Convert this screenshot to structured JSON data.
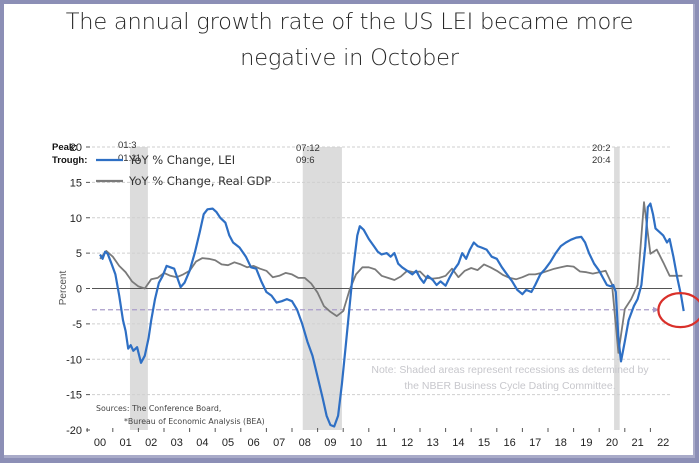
{
  "chart_data": {
    "type": "line",
    "title": "The annual growth rate of the US LEI became more negative in October",
    "title_lines": [
      "The annual growth rate of the US LEI became more",
      "negative in October"
    ],
    "xlabel": "",
    "ylabel": "Percent",
    "ylim": [
      -20,
      20
    ],
    "yticks": [
      -20,
      -15,
      -10,
      -5,
      0,
      5,
      10,
      15,
      20
    ],
    "xlim": [
      2000,
      2022.9
    ],
    "xtick_labels": [
      "00",
      "01",
      "02",
      "03",
      "04",
      "05",
      "06",
      "07",
      "08",
      "09",
      "10",
      "11",
      "12",
      "13",
      "14",
      "15",
      "16",
      "17",
      "18",
      "19",
      "20",
      "21",
      "22"
    ],
    "grid": "horizontal dashed",
    "legend_position": "top-left",
    "colors": {
      "lei": "#2e6fc4",
      "gdp": "#7a7a7a",
      "recession": "#dcdcdc",
      "marker_circle": "#d9302a",
      "dashed_ref": "#a99cc9"
    },
    "peak_trough": {
      "peak_label": "Peak:",
      "trough_label": "Trough:",
      "pairs": [
        {
          "peak": "01:3",
          "trough": "01:11"
        },
        {
          "peak": "07:12",
          "trough": "09:6"
        },
        {
          "peak": "20:2",
          "trough": "20:4"
        }
      ]
    },
    "recessions": [
      {
        "start": 2001.17,
        "end": 2001.87
      },
      {
        "start": 2007.92,
        "end": 2009.45
      },
      {
        "start": 2020.08,
        "end": 2020.3
      }
    ],
    "reference_line": {
      "y": -3,
      "x_end": 2021.6,
      "style": "dashed-arrow"
    },
    "highlight": {
      "x": 2022.75,
      "y": -3.2,
      "shape": "ellipse"
    },
    "series": [
      {
        "name": "YoY % Change, LEI",
        "key": "lei",
        "points": [
          [
            2000.0,
            4.8
          ],
          [
            2000.1,
            4.2
          ],
          [
            2000.2,
            5.2
          ],
          [
            2000.3,
            4.9
          ],
          [
            2000.45,
            3.5
          ],
          [
            2000.6,
            2.0
          ],
          [
            2000.75,
            -1.0
          ],
          [
            2000.9,
            -4.5
          ],
          [
            2001.0,
            -6.0
          ],
          [
            2001.1,
            -8.5
          ],
          [
            2001.2,
            -8.0
          ],
          [
            2001.3,
            -8.8
          ],
          [
            2001.45,
            -8.3
          ],
          [
            2001.6,
            -10.5
          ],
          [
            2001.75,
            -9.5
          ],
          [
            2001.9,
            -7.0
          ],
          [
            2002.0,
            -4.5
          ],
          [
            2002.15,
            -1.5
          ],
          [
            2002.3,
            0.8
          ],
          [
            2002.45,
            1.8
          ],
          [
            2002.6,
            3.2
          ],
          [
            2002.75,
            3.0
          ],
          [
            2002.9,
            2.8
          ],
          [
            2003.05,
            1.2
          ],
          [
            2003.15,
            0.2
          ],
          [
            2003.3,
            0.8
          ],
          [
            2003.5,
            2.5
          ],
          [
            2003.7,
            5.0
          ],
          [
            2003.9,
            8.0
          ],
          [
            2004.05,
            10.5
          ],
          [
            2004.2,
            11.2
          ],
          [
            2004.4,
            11.3
          ],
          [
            2004.55,
            10.8
          ],
          [
            2004.7,
            10.0
          ],
          [
            2004.9,
            9.3
          ],
          [
            2005.05,
            7.5
          ],
          [
            2005.2,
            6.5
          ],
          [
            2005.45,
            5.8
          ],
          [
            2005.7,
            4.5
          ],
          [
            2005.9,
            3.0
          ],
          [
            2006.1,
            2.8
          ],
          [
            2006.3,
            1.0
          ],
          [
            2006.5,
            -0.5
          ],
          [
            2006.7,
            -1.0
          ],
          [
            2006.9,
            -2.0
          ],
          [
            2007.1,
            -1.8
          ],
          [
            2007.3,
            -1.5
          ],
          [
            2007.5,
            -1.8
          ],
          [
            2007.7,
            -3.0
          ],
          [
            2007.9,
            -5.0
          ],
          [
            2008.1,
            -7.5
          ],
          [
            2008.3,
            -9.5
          ],
          [
            2008.5,
            -12.5
          ],
          [
            2008.7,
            -15.5
          ],
          [
            2008.85,
            -18.0
          ],
          [
            2009.0,
            -19.3
          ],
          [
            2009.15,
            -19.5
          ],
          [
            2009.3,
            -18.0
          ],
          [
            2009.45,
            -13.5
          ],
          [
            2009.6,
            -8.0
          ],
          [
            2009.75,
            -2.5
          ],
          [
            2009.9,
            3.0
          ],
          [
            2010.05,
            7.5
          ],
          [
            2010.15,
            8.8
          ],
          [
            2010.3,
            8.3
          ],
          [
            2010.5,
            7.0
          ],
          [
            2010.7,
            6.0
          ],
          [
            2010.85,
            5.2
          ],
          [
            2011.0,
            4.8
          ],
          [
            2011.2,
            5.0
          ],
          [
            2011.35,
            4.5
          ],
          [
            2011.5,
            5.0
          ],
          [
            2011.65,
            3.5
          ],
          [
            2011.8,
            3.0
          ],
          [
            2012.0,
            2.5
          ],
          [
            2012.2,
            2.0
          ],
          [
            2012.35,
            2.5
          ],
          [
            2012.5,
            1.5
          ],
          [
            2012.65,
            0.8
          ],
          [
            2012.8,
            1.8
          ],
          [
            2013.0,
            1.2
          ],
          [
            2013.15,
            0.5
          ],
          [
            2013.3,
            1.0
          ],
          [
            2013.5,
            0.4
          ],
          [
            2013.65,
            1.5
          ],
          [
            2013.8,
            2.5
          ],
          [
            2014.0,
            3.5
          ],
          [
            2014.15,
            5.0
          ],
          [
            2014.3,
            4.2
          ],
          [
            2014.45,
            5.5
          ],
          [
            2014.6,
            6.5
          ],
          [
            2014.75,
            6.0
          ],
          [
            2014.9,
            5.8
          ],
          [
            2015.1,
            5.5
          ],
          [
            2015.3,
            4.5
          ],
          [
            2015.5,
            4.2
          ],
          [
            2015.7,
            3.0
          ],
          [
            2015.9,
            2.0
          ],
          [
            2016.1,
            1.0
          ],
          [
            2016.3,
            -0.2
          ],
          [
            2016.5,
            -0.8
          ],
          [
            2016.65,
            -0.2
          ],
          [
            2016.85,
            -0.5
          ],
          [
            2017.0,
            0.5
          ],
          [
            2017.2,
            2.0
          ],
          [
            2017.4,
            2.8
          ],
          [
            2017.6,
            3.8
          ],
          [
            2017.8,
            5.0
          ],
          [
            2018.0,
            6.0
          ],
          [
            2018.2,
            6.5
          ],
          [
            2018.4,
            6.9
          ],
          [
            2018.6,
            7.2
          ],
          [
            2018.8,
            7.3
          ],
          [
            2018.95,
            6.5
          ],
          [
            2019.1,
            5.0
          ],
          [
            2019.3,
            3.5
          ],
          [
            2019.5,
            2.5
          ],
          [
            2019.65,
            1.5
          ],
          [
            2019.8,
            0.5
          ],
          [
            2019.95,
            0.3
          ],
          [
            2020.05,
            0.5
          ],
          [
            2020.15,
            -0.5
          ],
          [
            2020.25,
            -7.0
          ],
          [
            2020.35,
            -10.3
          ],
          [
            2020.5,
            -7.5
          ],
          [
            2020.65,
            -4.5
          ],
          [
            2020.85,
            -2.5
          ],
          [
            2021.0,
            -1.5
          ],
          [
            2021.15,
            0.5
          ],
          [
            2021.3,
            6.0
          ],
          [
            2021.4,
            11.5
          ],
          [
            2021.5,
            12.0
          ],
          [
            2021.6,
            10.5
          ],
          [
            2021.7,
            8.5
          ],
          [
            2021.85,
            8.0
          ],
          [
            2022.0,
            7.5
          ],
          [
            2022.15,
            6.5
          ],
          [
            2022.25,
            7.0
          ],
          [
            2022.4,
            4.5
          ],
          [
            2022.55,
            1.5
          ],
          [
            2022.7,
            -1.0
          ],
          [
            2022.8,
            -3.2
          ]
        ]
      },
      {
        "name": "YoY % Change, Real GDP",
        "key": "gdp",
        "points": [
          [
            2000.0,
            4.2
          ],
          [
            2000.25,
            5.3
          ],
          [
            2000.5,
            4.5
          ],
          [
            2000.75,
            3.2
          ],
          [
            2001.0,
            2.3
          ],
          [
            2001.25,
            1.0
          ],
          [
            2001.5,
            0.3
          ],
          [
            2001.75,
            0.0
          ],
          [
            2002.0,
            1.3
          ],
          [
            2002.25,
            1.5
          ],
          [
            2002.5,
            2.2
          ],
          [
            2002.75,
            1.8
          ],
          [
            2003.0,
            1.6
          ],
          [
            2003.25,
            2.0
          ],
          [
            2003.5,
            2.5
          ],
          [
            2003.75,
            3.8
          ],
          [
            2004.0,
            4.3
          ],
          [
            2004.25,
            4.2
          ],
          [
            2004.5,
            4.0
          ],
          [
            2004.75,
            3.4
          ],
          [
            2005.0,
            3.3
          ],
          [
            2005.25,
            3.7
          ],
          [
            2005.5,
            3.4
          ],
          [
            2005.75,
            3.0
          ],
          [
            2006.0,
            3.2
          ],
          [
            2006.25,
            2.8
          ],
          [
            2006.5,
            2.5
          ],
          [
            2006.75,
            1.6
          ],
          [
            2007.0,
            1.8
          ],
          [
            2007.25,
            2.2
          ],
          [
            2007.5,
            2.0
          ],
          [
            2007.75,
            1.5
          ],
          [
            2008.0,
            1.5
          ],
          [
            2008.25,
            0.7
          ],
          [
            2008.5,
            -0.6
          ],
          [
            2008.75,
            -2.5
          ],
          [
            2009.0,
            -3.3
          ],
          [
            2009.25,
            -3.9
          ],
          [
            2009.5,
            -3.2
          ],
          [
            2009.75,
            -0.2
          ],
          [
            2010.0,
            2.0
          ],
          [
            2010.25,
            3.0
          ],
          [
            2010.5,
            3.0
          ],
          [
            2010.75,
            2.7
          ],
          [
            2011.0,
            1.8
          ],
          [
            2011.25,
            1.5
          ],
          [
            2011.5,
            1.2
          ],
          [
            2011.75,
            1.7
          ],
          [
            2012.0,
            2.5
          ],
          [
            2012.25,
            2.3
          ],
          [
            2012.5,
            2.4
          ],
          [
            2012.75,
            1.5
          ],
          [
            2013.0,
            1.4
          ],
          [
            2013.25,
            1.5
          ],
          [
            2013.5,
            1.8
          ],
          [
            2013.75,
            2.8
          ],
          [
            2014.0,
            1.6
          ],
          [
            2014.25,
            2.5
          ],
          [
            2014.5,
            2.9
          ],
          [
            2014.75,
            2.6
          ],
          [
            2015.0,
            3.4
          ],
          [
            2015.25,
            3.0
          ],
          [
            2015.5,
            2.5
          ],
          [
            2015.75,
            1.9
          ],
          [
            2016.0,
            1.5
          ],
          [
            2016.25,
            1.3
          ],
          [
            2016.5,
            1.6
          ],
          [
            2016.75,
            2.0
          ],
          [
            2017.0,
            2.0
          ],
          [
            2017.25,
            2.2
          ],
          [
            2017.5,
            2.5
          ],
          [
            2017.75,
            2.8
          ],
          [
            2018.0,
            3.0
          ],
          [
            2018.25,
            3.2
          ],
          [
            2018.5,
            3.1
          ],
          [
            2018.75,
            2.4
          ],
          [
            2019.0,
            2.3
          ],
          [
            2019.25,
            2.1
          ],
          [
            2019.5,
            2.3
          ],
          [
            2019.75,
            2.5
          ],
          [
            2020.0,
            0.6
          ],
          [
            2020.25,
            -9.1
          ],
          [
            2020.5,
            -2.9
          ],
          [
            2020.75,
            -1.5
          ],
          [
            2021.0,
            0.5
          ],
          [
            2021.25,
            12.2
          ],
          [
            2021.5,
            4.9
          ],
          [
            2021.75,
            5.5
          ],
          [
            2022.0,
            3.7
          ],
          [
            2022.25,
            1.8
          ],
          [
            2022.5,
            1.8
          ],
          [
            2022.75,
            1.8
          ]
        ]
      }
    ],
    "legend": [
      "YoY % Change, LEI",
      "YoY % Change, Real GDP"
    ],
    "annotations": {
      "note_lines": [
        "Note: Shaded areas represent recessions as determined by",
        "the NBER Business Cycle Dating Committee."
      ],
      "source_lines": [
        "Sources: The Conference Board,",
        "*Bureau of Economic Analysis (BEA)"
      ]
    }
  }
}
